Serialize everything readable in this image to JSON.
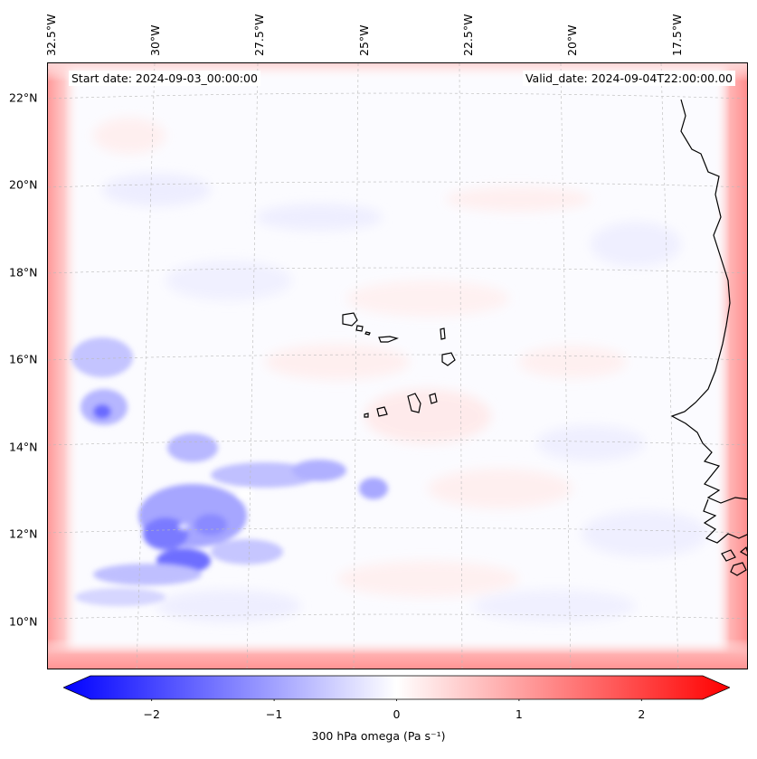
{
  "map": {
    "start_date": "Start date: 2024-09-03_00:00:00",
    "valid_date": "Valid_date: 2024-09-04T22:00:00.00",
    "lat_labels": [
      "22°N",
      "20°N",
      "18°N",
      "16°N",
      "14°N",
      "12°N",
      "10°N"
    ],
    "lat_values": [
      22,
      20,
      18,
      16,
      14,
      12,
      10
    ],
    "lon_labels": [
      "32.5°W",
      "30°W",
      "27.5°W",
      "25°W",
      "22.5°W",
      "20°W",
      "17.5°W"
    ],
    "lon_values": [
      -32.5,
      -30,
      -27.5,
      -25,
      -22.5,
      -20,
      -17.5
    ],
    "extent": {
      "lat_min": 8.9,
      "lat_max": 22.8,
      "lon_min": -32.6,
      "lon_max": -15.8
    },
    "variable": "300 hPa omega",
    "units": "Pa s⁻¹",
    "colorbar_label": "300 hPa omega (Pa s⁻¹)",
    "colorbar_ticks": [
      "−2",
      "−1",
      "0",
      "1",
      "2"
    ],
    "colorbar_tick_values": [
      -2,
      -1,
      0,
      1,
      2
    ],
    "colorbar_range": [
      -2.75,
      2.75
    ],
    "colormap": "bwr",
    "colors": {
      "negative": "#0000ff",
      "zero": "#ffffff",
      "positive": "#ff0000",
      "coast": "#000000",
      "grid": "#b0b0b0"
    }
  }
}
